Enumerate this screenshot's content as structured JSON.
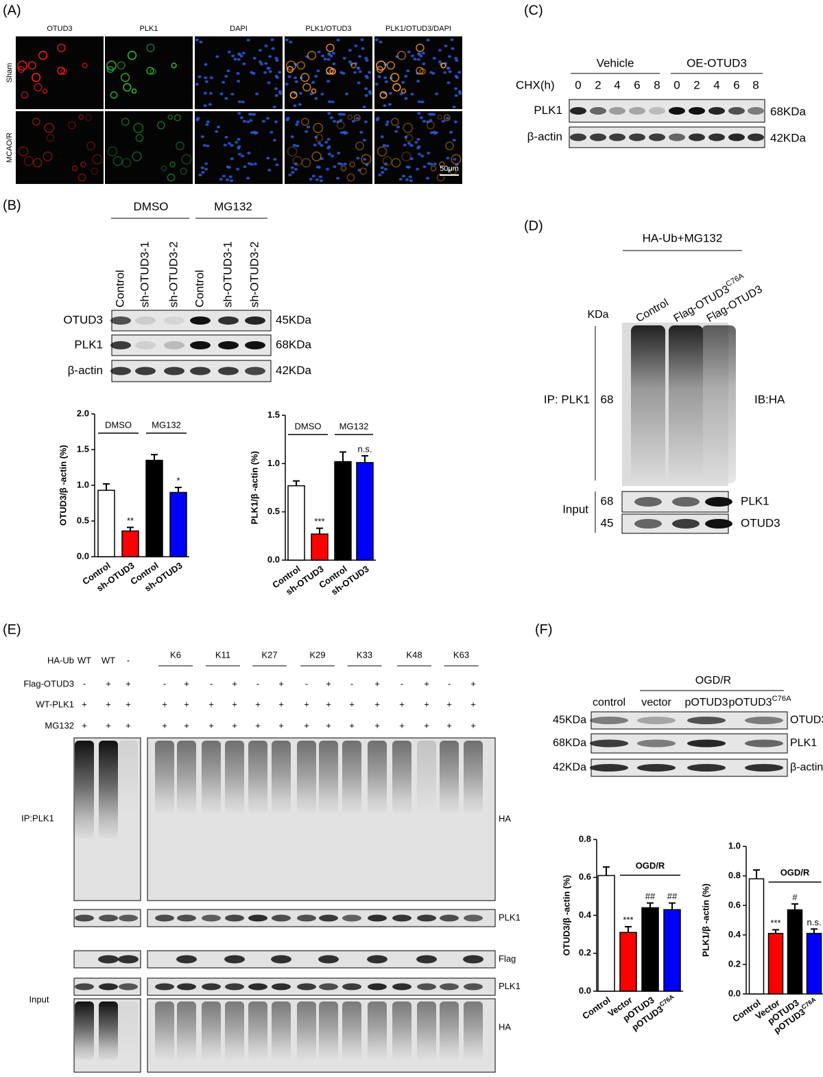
{
  "panel_a": {
    "label": "(A)",
    "columns": [
      "OTUD3",
      "PLK1",
      "DAPI",
      "PLK1/OTUD3",
      "PLK1/OTUD3/DAPI"
    ],
    "rows": [
      "Sham",
      "MCAO/R"
    ],
    "scale_bar": "50μm"
  },
  "panel_b": {
    "label": "(B)",
    "groups": [
      "DMSO",
      "MG132"
    ],
    "lanes": [
      "Control",
      "sh-OTUD3-1",
      "sh-OTUD3-2",
      "Control",
      "sh-OTUD3-1",
      "sh-OTUD3-2"
    ],
    "blots": [
      {
        "name": "OTUD3",
        "size": "45KDa"
      },
      {
        "name": "PLK1",
        "size": "68KDa"
      },
      {
        "name": "β-actin",
        "size": "42KDa"
      }
    ]
  },
  "panel_c": {
    "label": "(C)",
    "groups": [
      "Vehicle",
      "OE-OTUD3"
    ],
    "row_label": "CHX(h)",
    "times": [
      "0",
      "2",
      "4",
      "6",
      "8",
      "0",
      "2",
      "4",
      "6",
      "8"
    ],
    "blots": [
      {
        "name": "PLK1",
        "size": "68KDa"
      },
      {
        "name": "β-actin",
        "size": "42KDa"
      }
    ]
  },
  "panel_d": {
    "label": "(D)",
    "treatment": "HA-Ub+MG132",
    "lanes": [
      {
        "text": "Control"
      },
      {
        "text": "Flag-OTUD3",
        "sup": "C76A"
      },
      {
        "text": "Flag-OTUD3"
      }
    ],
    "unit": "KDa",
    "ip": "IP: PLK1",
    "ip_size": "68",
    "ib": "IB:HA",
    "input": "Input",
    "input_blots": [
      {
        "size": "68",
        "name": "PLK1"
      },
      {
        "size": "45",
        "name": "OTUD3"
      }
    ]
  },
  "panel_e": {
    "label": "(E)",
    "row_labels": [
      "HA-Ub",
      "Flag-OTUD3",
      "WT-PLK1",
      "MG132"
    ],
    "ha_ub": [
      "WT",
      "WT",
      "-"
    ],
    "ubiquitin_mutants": [
      "K6",
      "K11",
      "K27",
      "K29",
      "K33",
      "K48",
      "K63"
    ],
    "flag_otud3": [
      "-",
      "+",
      "+",
      "-",
      "+",
      "-",
      "+",
      "-",
      "+",
      "-",
      "+",
      "-",
      "+",
      "-",
      "+",
      "-",
      "+"
    ],
    "wt_plk1": [
      "+",
      "+",
      "+",
      "+",
      "+",
      "+",
      "+",
      "+",
      "+",
      "+",
      "+",
      "+",
      "+",
      "+",
      "+",
      "+",
      "+"
    ],
    "mg132": [
      "+",
      "+",
      "+",
      "+",
      "+",
      "+",
      "+",
      "+",
      "+",
      "+",
      "+",
      "+",
      "+",
      "+",
      "+",
      "+",
      "+"
    ],
    "section_labels": [
      "IP:PLK1",
      "Input"
    ],
    "blot_labels": [
      "HA",
      "PLK1",
      "Flag",
      "PLK1",
      "HA"
    ]
  },
  "panel_f": {
    "label": "(F)",
    "group": "OGD/R",
    "lanes": [
      {
        "text": "control"
      },
      {
        "text": "vector"
      },
      {
        "text": "pOTUD3"
      },
      {
        "text": "pOTUD3",
        "sup": "C76A"
      }
    ],
    "blots": [
      {
        "name": "OTUD3",
        "size": "45KDa"
      },
      {
        "name": "PLK1",
        "size": "68KDa"
      },
      {
        "name": "β-actin",
        "size": "42KDa"
      }
    ]
  },
  "chart_data": [
    {
      "type": "bar",
      "ylabel": "OTUD3/β -actin (%)",
      "categories": [
        "Control",
        "sh-OTUD3",
        "Control",
        "sh-OTUD3"
      ],
      "values": [
        0.93,
        0.36,
        1.35,
        0.9
      ],
      "errors": [
        0.09,
        0.05,
        0.08,
        0.07
      ],
      "colors": [
        "#ffffff",
        "#ff0000",
        "#000000",
        "#0000ff"
      ],
      "significance": [
        null,
        "**",
        null,
        "*"
      ],
      "groups": [
        "DMSO",
        "MG132"
      ],
      "ylim": [
        0,
        2
      ],
      "yticks": [
        {
          "value": 0,
          "label": "0.0"
        },
        0.5,
        {
          "value": 1,
          "label": "1.0"
        },
        1.5,
        {
          "value": 2,
          "label": "2.0"
        }
      ]
    },
    {
      "type": "bar",
      "ylabel": "PLK1/β -actin (%)",
      "categories": [
        "Control",
        "sh-OTUD3",
        "Control",
        "sh-OTUD3"
      ],
      "values": [
        0.77,
        0.27,
        1.02,
        1.01
      ],
      "errors": [
        0.05,
        0.06,
        0.1,
        0.07
      ],
      "colors": [
        "#ffffff",
        "#ff0000",
        "#000000",
        "#0000ff"
      ],
      "significance": [
        null,
        "***",
        null,
        "n.s."
      ],
      "groups": [
        "DMSO",
        "MG132"
      ],
      "ylim": [
        0,
        1.5
      ],
      "yticks": [
        {
          "value": 0,
          "label": "0.0"
        },
        0.5,
        {
          "value": 1,
          "label": "1.0"
        },
        1.5
      ]
    },
    {
      "type": "bar",
      "ylabel": "OTUD3/β -actin (%)",
      "categories": [
        "Control",
        "Vector",
        "pOTUD3",
        "pOTUD3"
      ],
      "category_superscripts": [
        null,
        null,
        null,
        "C76A"
      ],
      "values": [
        0.61,
        0.31,
        0.44,
        0.43
      ],
      "errors": [
        0.045,
        0.03,
        0.025,
        0.035
      ],
      "colors": [
        "#ffffff",
        "#ff0000",
        "#000000",
        "#0000ff"
      ],
      "significance": [
        null,
        "***",
        "##",
        "##"
      ],
      "group": "OGD/R",
      "ylim": [
        0,
        0.8
      ],
      "yticks": [
        {
          "value": 0,
          "label": "0.0"
        },
        0.2,
        0.4,
        0.6,
        0.8
      ]
    },
    {
      "type": "bar",
      "ylabel": "PLK1/β -actin (%)",
      "categories": [
        "Control",
        "Vector",
        "pOTUD3",
        "pOTUD3"
      ],
      "category_superscripts": [
        null,
        null,
        null,
        "C76A"
      ],
      "values": [
        0.78,
        0.41,
        0.57,
        0.41
      ],
      "errors": [
        0.06,
        0.025,
        0.04,
        0.03
      ],
      "colors": [
        "#ffffff",
        "#ff0000",
        "#000000",
        "#0000ff"
      ],
      "significance": [
        null,
        "***",
        "#",
        "n.s."
      ],
      "group": "OGD/R",
      "ylim": [
        0,
        1
      ],
      "yticks": [
        {
          "value": 0,
          "label": "0.0"
        },
        0.2,
        0.4,
        0.6,
        0.8,
        {
          "value": 1,
          "label": "1.0"
        }
      ]
    }
  ]
}
